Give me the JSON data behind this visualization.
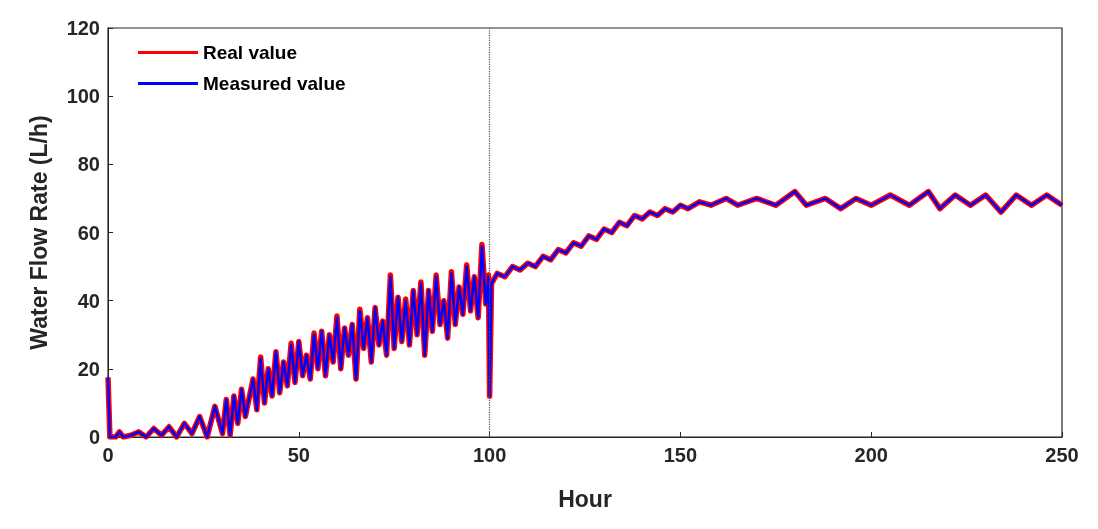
{
  "chart_data": {
    "type": "line",
    "xlabel": "Hour",
    "ylabel": "Water Flow Rate (L/h)",
    "xlim": [
      0,
      250
    ],
    "xticks": [
      0,
      50,
      100,
      150,
      200,
      250
    ],
    "ylim": [
      0,
      120
    ],
    "yticks": [
      0,
      20,
      40,
      60,
      80,
      100,
      120
    ],
    "grid": false,
    "legend": "top left",
    "marker": "none",
    "line_style": "solid",
    "ref_lines": [
      {
        "axis": "x",
        "value": 100,
        "color": "#555555",
        "line_style": "dotted"
      }
    ],
    "series": [
      {
        "name": "Real value",
        "color": "#ff0000",
        "x": [
          0,
          0.5,
          2,
          3,
          4,
          6,
          8,
          10,
          12,
          14,
          16,
          18,
          20,
          22,
          24,
          26,
          28,
          30,
          31,
          32,
          33,
          34,
          35,
          36,
          38,
          39,
          40,
          41,
          42,
          43,
          44,
          45,
          46,
          47,
          48,
          49,
          50,
          51,
          52,
          53,
          54,
          55,
          56,
          57,
          58,
          59,
          60,
          61,
          62,
          63,
          64,
          65,
          66,
          67,
          68,
          69,
          70,
          71,
          72,
          73,
          74,
          75,
          76,
          77,
          78,
          79,
          80,
          81,
          82,
          83,
          84,
          85,
          86,
          87,
          88,
          89,
          90,
          91,
          92,
          93,
          94,
          95,
          96,
          97,
          98,
          99,
          99.7,
          100,
          100.5,
          102,
          104,
          106,
          108,
          110,
          112,
          114,
          116,
          118,
          120,
          122,
          124,
          126,
          128,
          130,
          132,
          134,
          136,
          138,
          140,
          142,
          144,
          146,
          148,
          150,
          152,
          155,
          158,
          162,
          165,
          170,
          175,
          180,
          183,
          188,
          192,
          196,
          200,
          205,
          210,
          215,
          218,
          222,
          226,
          230,
          234,
          238,
          242,
          246,
          250
        ],
        "values": [
          17.5,
          0,
          0,
          1.5,
          0,
          0.5,
          1.5,
          0,
          2.5,
          0.5,
          3,
          0,
          4,
          1,
          6,
          0,
          9,
          1,
          11,
          0.5,
          12,
          4,
          14,
          6,
          17,
          8,
          23.5,
          10,
          20,
          12,
          25,
          13,
          22,
          15,
          27.5,
          16,
          28,
          18,
          24,
          17,
          30.5,
          20,
          31,
          18,
          30,
          22,
          35.5,
          20,
          32,
          24,
          33,
          17,
          37.5,
          26,
          35,
          22,
          38,
          27,
          34,
          24,
          47.5,
          26,
          41,
          28,
          40.5,
          27,
          43,
          30,
          45.5,
          24,
          43,
          31,
          47.5,
          33,
          40,
          29,
          48.5,
          33,
          44,
          36,
          50.5,
          37,
          47,
          35,
          56.5,
          39,
          47.5,
          12,
          45,
          48,
          47,
          50,
          49,
          51,
          50,
          53,
          52,
          55,
          54,
          57,
          56,
          59,
          58,
          61,
          60,
          63,
          62,
          65,
          64,
          66,
          65,
          67,
          66,
          68,
          67,
          69,
          68,
          70,
          68,
          70,
          68,
          72,
          68,
          70,
          67,
          70,
          68,
          71,
          68,
          72,
          67,
          71,
          68,
          71,
          66,
          71,
          68,
          71,
          68
        ]
      },
      {
        "name": "Measured value",
        "color": "#0000ff",
        "x": [
          0,
          0.5,
          2,
          3,
          4,
          6,
          8,
          10,
          12,
          14,
          16,
          18,
          20,
          22,
          24,
          26,
          28,
          30,
          31,
          32,
          33,
          34,
          35,
          36,
          38,
          39,
          40,
          41,
          42,
          43,
          44,
          45,
          46,
          47,
          48,
          49,
          50,
          51,
          52,
          53,
          54,
          55,
          56,
          57,
          58,
          59,
          60,
          61,
          62,
          63,
          64,
          65,
          66,
          67,
          68,
          69,
          70,
          71,
          72,
          73,
          74,
          75,
          76,
          77,
          78,
          79,
          80,
          81,
          82,
          83,
          84,
          85,
          86,
          87,
          88,
          89,
          90,
          91,
          92,
          93,
          94,
          95,
          96,
          97,
          98,
          99,
          99.7,
          100,
          100.5,
          102,
          104,
          106,
          108,
          110,
          112,
          114,
          116,
          118,
          120,
          122,
          124,
          126,
          128,
          130,
          132,
          134,
          136,
          138,
          140,
          142,
          144,
          146,
          148,
          150,
          152,
          155,
          158,
          162,
          165,
          170,
          175,
          180,
          183,
          188,
          192,
          196,
          200,
          205,
          210,
          215,
          218,
          222,
          226,
          230,
          234,
          238,
          242,
          246,
          250
        ],
        "values": [
          17.5,
          0,
          0,
          1.5,
          0,
          0.5,
          1.5,
          0,
          2.5,
          0.5,
          3,
          0,
          4,
          1,
          6,
          0,
          9,
          1,
          11,
          0.5,
          12,
          4,
          14,
          6,
          17,
          8,
          23,
          10,
          20,
          12,
          25,
          13,
          22,
          15,
          27,
          16,
          28,
          18,
          24,
          17,
          30,
          20,
          31,
          18,
          30,
          22,
          35,
          20,
          32,
          24,
          33,
          17,
          37,
          26,
          35,
          22,
          38,
          27,
          34,
          24,
          47,
          26,
          41,
          28,
          40,
          27,
          43,
          30,
          45,
          24,
          43,
          31,
          47,
          33,
          40,
          29,
          48,
          33,
          44,
          36,
          50,
          37,
          47,
          35,
          56,
          39,
          47,
          12,
          45,
          48,
          47,
          50,
          49,
          51,
          50,
          53,
          52,
          55,
          54,
          57,
          56,
          59,
          58,
          61,
          60,
          63,
          62,
          65,
          64,
          66,
          65,
          67,
          66,
          68,
          67,
          69,
          68,
          70,
          68,
          70,
          68,
          72,
          68,
          70,
          67,
          70,
          68,
          71,
          68,
          72,
          67,
          71,
          68,
          71,
          66,
          71,
          68,
          71,
          68
        ]
      }
    ]
  }
}
